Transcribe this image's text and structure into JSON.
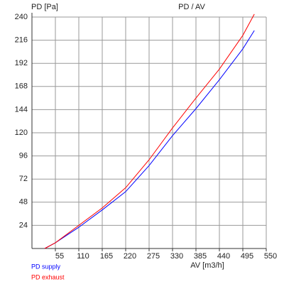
{
  "chart_data": {
    "type": "line",
    "title": "PD / AV",
    "y_label": "PD [Pa]",
    "x_label": "AV [m3/h]",
    "x": [
      30,
      55,
      110,
      165,
      220,
      275,
      330,
      385,
      440,
      495,
      522
    ],
    "series": [
      {
        "name": "PD supply",
        "color": "#0000ff",
        "values": [
          0,
          6,
          22,
          40,
          59,
          86,
          117,
          145,
          175,
          207,
          226
        ]
      },
      {
        "name": "PD exhaust",
        "color": "#ff0000",
        "values": [
          0,
          6,
          24,
          42,
          63,
          92,
          125,
          156,
          186,
          221,
          243
        ]
      }
    ],
    "xlim": [
      0,
      550
    ],
    "ylim": [
      0,
      240
    ],
    "xticks": [
      55,
      110,
      165,
      220,
      275,
      330,
      385,
      440,
      495,
      550
    ],
    "yticks": [
      24,
      48,
      72,
      96,
      120,
      144,
      168,
      192,
      216,
      240
    ],
    "grid": true
  }
}
